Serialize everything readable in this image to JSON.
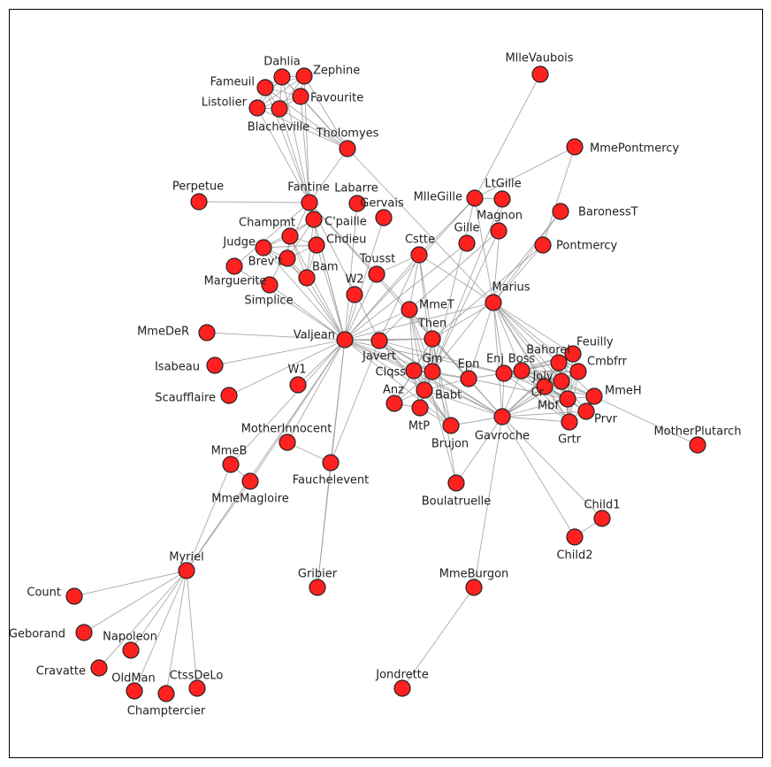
{
  "colors": {
    "node_fill": "#ff2020",
    "node_stroke": "#222222",
    "edge": "#9a9a9a",
    "frame": "#000000",
    "label": "#222222"
  },
  "nodes": [
    {
      "id": "MlleVaubois",
      "label": "MlleVaubois"
    },
    {
      "id": "Dahlia",
      "label": "Dahlia"
    },
    {
      "id": "Zephine",
      "label": "Zephine"
    },
    {
      "id": "Fameuil",
      "label": "Fameuil"
    },
    {
      "id": "Favourite",
      "label": "Favourite"
    },
    {
      "id": "Listolier",
      "label": "Listolier"
    },
    {
      "id": "Blacheville",
      "label": "Blacheville"
    },
    {
      "id": "Tholomyes",
      "label": "Tholomyes"
    },
    {
      "id": "MmePontmercy",
      "label": "MmePontmercy"
    },
    {
      "id": "Perpetue",
      "label": "Perpetue"
    },
    {
      "id": "Fantine",
      "label": "Fantine"
    },
    {
      "id": "Labarre",
      "label": "Labarre"
    },
    {
      "id": "Gervais",
      "label": "Gervais"
    },
    {
      "id": "MlleGille",
      "label": "MlleGille"
    },
    {
      "id": "LtGille",
      "label": "LtGille"
    },
    {
      "id": "BaronessT",
      "label": "BaronessT"
    },
    {
      "id": "Champmt",
      "label": "Champmt"
    },
    {
      "id": "Cpaille",
      "label": "C'paille"
    },
    {
      "id": "Magnon",
      "label": "Magnon"
    },
    {
      "id": "Gille",
      "label": "Gille"
    },
    {
      "id": "Judge",
      "label": "Judge"
    },
    {
      "id": "Chdieu",
      "label": "Chdieu"
    },
    {
      "id": "Cstte",
      "label": "Cstte"
    },
    {
      "id": "Pontmercy",
      "label": "Pontmercy"
    },
    {
      "id": "Brevet",
      "label": "Brev't"
    },
    {
      "id": "Tousst",
      "label": "Tousst"
    },
    {
      "id": "Bam",
      "label": "Bam"
    },
    {
      "id": "Marguerite",
      "label": "Marguerite"
    },
    {
      "id": "W2",
      "label": "W2"
    },
    {
      "id": "Simplice",
      "label": "Simplice"
    },
    {
      "id": "Marius",
      "label": "Marius"
    },
    {
      "id": "MmeT",
      "label": "MmeT"
    },
    {
      "id": "MmeDeR",
      "label": "MmeDeR"
    },
    {
      "id": "Valjean",
      "label": "Valjean"
    },
    {
      "id": "Then",
      "label": "Then"
    },
    {
      "id": "Javert",
      "label": "Javert"
    },
    {
      "id": "Feuilly",
      "label": "Feuilly"
    },
    {
      "id": "Bahorel",
      "label": "Bahorel"
    },
    {
      "id": "Isabeau",
      "label": "Isabeau"
    },
    {
      "id": "Gm",
      "label": "Gm"
    },
    {
      "id": "Cmbfrr",
      "label": "Cmbfrr"
    },
    {
      "id": "Enj",
      "label": "Enj"
    },
    {
      "id": "Boss",
      "label": "Boss"
    },
    {
      "id": "W1",
      "label": "W1"
    },
    {
      "id": "Clqss",
      "label": "Clqss"
    },
    {
      "id": "Epn",
      "label": "Epn"
    },
    {
      "id": "Joly",
      "label": "Joly"
    },
    {
      "id": "Cr",
      "label": "Cr"
    },
    {
      "id": "Scaufflaire",
      "label": "Scaufflaire"
    },
    {
      "id": "MmeH",
      "label": "MmeH"
    },
    {
      "id": "Anz",
      "label": "Anz"
    },
    {
      "id": "Babt",
      "label": "Babt"
    },
    {
      "id": "Mbf",
      "label": "Mbf"
    },
    {
      "id": "MtP",
      "label": "MtP"
    },
    {
      "id": "Prvr",
      "label": "Prvr"
    },
    {
      "id": "Grtr",
      "label": "Grtr"
    },
    {
      "id": "Gavroche",
      "label": "Gavroche"
    },
    {
      "id": "Brujon",
      "label": "Brujon"
    },
    {
      "id": "MotherInnocent",
      "label": "MotherInnocent"
    },
    {
      "id": "MotherPlutarch",
      "label": "MotherPlutarch"
    },
    {
      "id": "MmeB",
      "label": "MmeB"
    },
    {
      "id": "Fauchelevent",
      "label": "Fauchelevent"
    },
    {
      "id": "MmeMagloire",
      "label": "MmeMagloire"
    },
    {
      "id": "Boulatruelle",
      "label": "Boulatruelle"
    },
    {
      "id": "Child1",
      "label": "Child1"
    },
    {
      "id": "Child2",
      "label": "Child2"
    },
    {
      "id": "Myriel",
      "label": "Myriel"
    },
    {
      "id": "Gribier",
      "label": "Gribier"
    },
    {
      "id": "MmeBurgon",
      "label": "MmeBurgon"
    },
    {
      "id": "Count",
      "label": "Count"
    },
    {
      "id": "Geborand",
      "label": "Geborand"
    },
    {
      "id": "Napoleon",
      "label": "Napoleon"
    },
    {
      "id": "Cravatte",
      "label": "Cravatte"
    },
    {
      "id": "OldMan",
      "label": "OldMan"
    },
    {
      "id": "CtssDeLo",
      "label": "CtssDeLo"
    },
    {
      "id": "Champtercier",
      "label": "Champtercier"
    },
    {
      "id": "Jondrette",
      "label": "Jondrette"
    }
  ],
  "edges": [
    [
      "Dahlia",
      "Zephine"
    ],
    [
      "Dahlia",
      "Fameuil"
    ],
    [
      "Dahlia",
      "Favourite"
    ],
    [
      "Dahlia",
      "Listolier"
    ],
    [
      "Dahlia",
      "Blacheville"
    ],
    [
      "Dahlia",
      "Tholomyes"
    ],
    [
      "Dahlia",
      "Fantine"
    ],
    [
      "Zephine",
      "Fameuil"
    ],
    [
      "Zephine",
      "Favourite"
    ],
    [
      "Zephine",
      "Listolier"
    ],
    [
      "Zephine",
      "Blacheville"
    ],
    [
      "Zephine",
      "Tholomyes"
    ],
    [
      "Zephine",
      "Fantine"
    ],
    [
      "Fameuil",
      "Favourite"
    ],
    [
      "Fameuil",
      "Listolier"
    ],
    [
      "Fameuil",
      "Blacheville"
    ],
    [
      "Fameuil",
      "Tholomyes"
    ],
    [
      "Fameuil",
      "Fantine"
    ],
    [
      "Favourite",
      "Listolier"
    ],
    [
      "Favourite",
      "Blacheville"
    ],
    [
      "Favourite",
      "Tholomyes"
    ],
    [
      "Favourite",
      "Fantine"
    ],
    [
      "Listolier",
      "Blacheville"
    ],
    [
      "Listolier",
      "Tholomyes"
    ],
    [
      "Listolier",
      "Fantine"
    ],
    [
      "Blacheville",
      "Tholomyes"
    ],
    [
      "Blacheville",
      "Fantine"
    ],
    [
      "Tholomyes",
      "Fantine"
    ],
    [
      "Tholomyes",
      "Marius"
    ],
    [
      "Perpetue",
      "Fantine"
    ],
    [
      "Fantine",
      "Valjean"
    ],
    [
      "Fantine",
      "Javert"
    ],
    [
      "Fantine",
      "MmeT"
    ],
    [
      "Fantine",
      "Then"
    ],
    [
      "Fantine",
      "Marguerite"
    ],
    [
      "Fantine",
      "Simplice"
    ],
    [
      "Labarre",
      "Valjean"
    ],
    [
      "Gervais",
      "Valjean"
    ],
    [
      "MlleVaubois",
      "MlleGille"
    ],
    [
      "MmePontmercy",
      "Pontmercy"
    ],
    [
      "MmePontmercy",
      "MlleGille"
    ],
    [
      "LtGille",
      "MlleGille"
    ],
    [
      "LtGille",
      "Gm"
    ],
    [
      "LtGille",
      "Marius"
    ],
    [
      "MlleGille",
      "Gm"
    ],
    [
      "MlleGille",
      "Marius"
    ],
    [
      "MlleGille",
      "Valjean"
    ],
    [
      "MlleGille",
      "Cstte"
    ],
    [
      "BaronessT",
      "Marius"
    ],
    [
      "BaronessT",
      "Gm"
    ],
    [
      "Pontmercy",
      "Marius"
    ],
    [
      "Pontmercy",
      "Then"
    ],
    [
      "Magnon",
      "Gm"
    ],
    [
      "Magnon",
      "MmeT"
    ],
    [
      "Gille",
      "Valjean"
    ],
    [
      "Champmt",
      "Cpaille"
    ],
    [
      "Champmt",
      "Judge"
    ],
    [
      "Champmt",
      "Chdieu"
    ],
    [
      "Champmt",
      "Brevet"
    ],
    [
      "Champmt",
      "Bam"
    ],
    [
      "Champmt",
      "Valjean"
    ],
    [
      "Cpaille",
      "Judge"
    ],
    [
      "Cpaille",
      "Chdieu"
    ],
    [
      "Cpaille",
      "Brevet"
    ],
    [
      "Cpaille",
      "Bam"
    ],
    [
      "Cpaille",
      "Valjean"
    ],
    [
      "Judge",
      "Chdieu"
    ],
    [
      "Judge",
      "Brevet"
    ],
    [
      "Judge",
      "Bam"
    ],
    [
      "Judge",
      "Valjean"
    ],
    [
      "Chdieu",
      "Brevet"
    ],
    [
      "Chdieu",
      "Bam"
    ],
    [
      "Chdieu",
      "Valjean"
    ],
    [
      "Brevet",
      "Bam"
    ],
    [
      "Brevet",
      "Valjean"
    ],
    [
      "Bam",
      "Valjean"
    ],
    [
      "Cstte",
      "Valjean"
    ],
    [
      "Cstte",
      "Marius"
    ],
    [
      "Cstte",
      "Javert"
    ],
    [
      "Cstte",
      "Then"
    ],
    [
      "Cstte",
      "Gm"
    ],
    [
      "Cstte",
      "MmeT"
    ],
    [
      "Cstte",
      "Tousst"
    ],
    [
      "Tousst",
      "Valjean"
    ],
    [
      "W2",
      "Valjean"
    ],
    [
      "Simplice",
      "Valjean"
    ],
    [
      "Marguerite",
      "Valjean"
    ],
    [
      "MmeDeR",
      "Valjean"
    ],
    [
      "Isabeau",
      "Valjean"
    ],
    [
      "Scaufflaire",
      "Valjean"
    ],
    [
      "W1",
      "Valjean"
    ],
    [
      "Valjean",
      "Javert"
    ],
    [
      "Valjean",
      "MmeT"
    ],
    [
      "Valjean",
      "Then"
    ],
    [
      "Valjean",
      "Marius"
    ],
    [
      "Valjean",
      "Gavroche"
    ],
    [
      "Valjean",
      "Myriel"
    ],
    [
      "Valjean",
      "MmeMagloire"
    ],
    [
      "Valjean",
      "MmeB"
    ],
    [
      "Valjean",
      "Fauchelevent"
    ],
    [
      "Valjean",
      "MotherInnocent"
    ],
    [
      "Valjean",
      "Gribier"
    ],
    [
      "Valjean",
      "Gm"
    ],
    [
      "Valjean",
      "Babt"
    ],
    [
      "Valjean",
      "Clqss"
    ],
    [
      "Valjean",
      "Brujon"
    ],
    [
      "Valjean",
      "Enj"
    ],
    [
      "Javert",
      "Then"
    ],
    [
      "Javert",
      "MmeT"
    ],
    [
      "Javert",
      "Gavroche"
    ],
    [
      "Javert",
      "Enj"
    ],
    [
      "Javert",
      "Gm"
    ],
    [
      "Javert",
      "Babt"
    ],
    [
      "Javert",
      "Clqss"
    ],
    [
      "Javert",
      "Brujon"
    ],
    [
      "Javert",
      "Fauchelevent"
    ],
    [
      "MmeT",
      "Then"
    ],
    [
      "MmeT",
      "Epn"
    ],
    [
      "MmeT",
      "Babt"
    ],
    [
      "MmeT",
      "Clqss"
    ],
    [
      "MmeT",
      "Gm"
    ],
    [
      "MmeT",
      "Boulatruelle"
    ],
    [
      "Then",
      "Epn"
    ],
    [
      "Then",
      "Gm"
    ],
    [
      "Then",
      "Babt"
    ],
    [
      "Then",
      "Clqss"
    ],
    [
      "Then",
      "Anz"
    ],
    [
      "Then",
      "MtP"
    ],
    [
      "Then",
      "Brujon"
    ],
    [
      "Then",
      "Gavroche"
    ],
    [
      "Then",
      "Marius"
    ],
    [
      "Then",
      "Boulatruelle"
    ],
    [
      "Gm",
      "Babt"
    ],
    [
      "Gm",
      "Clqss"
    ],
    [
      "Gm",
      "Anz"
    ],
    [
      "Gm",
      "MtP"
    ],
    [
      "Gm",
      "Brujon"
    ],
    [
      "Gm",
      "Epn"
    ],
    [
      "Babt",
      "Clqss"
    ],
    [
      "Babt",
      "Anz"
    ],
    [
      "Babt",
      "MtP"
    ],
    [
      "Babt",
      "Brujon"
    ],
    [
      "Babt",
      "Epn"
    ],
    [
      "Clqss",
      "Anz"
    ],
    [
      "Clqss",
      "MtP"
    ],
    [
      "Clqss",
      "Brujon"
    ],
    [
      "Clqss",
      "Epn"
    ],
    [
      "Anz",
      "MtP"
    ],
    [
      "MtP",
      "Brujon"
    ],
    [
      "Brujon",
      "Gavroche"
    ],
    [
      "Marius",
      "Epn"
    ],
    [
      "Marius",
      "Enj"
    ],
    [
      "Marius",
      "Cmbfrr"
    ],
    [
      "Marius",
      "Cr"
    ],
    [
      "Marius",
      "Bahorel"
    ],
    [
      "Marius",
      "Feuilly"
    ],
    [
      "Marius",
      "Joly"
    ],
    [
      "Marius",
      "Grtr"
    ],
    [
      "Marius",
      "Boss"
    ],
    [
      "Marius",
      "Mbf"
    ],
    [
      "Marius",
      "Gavroche"
    ],
    [
      "Epn",
      "Gavroche"
    ],
    [
      "Epn",
      "Enj"
    ],
    [
      "Epn",
      "Mbf"
    ],
    [
      "Enj",
      "Boss"
    ],
    [
      "Enj",
      "Cmbfrr"
    ],
    [
      "Enj",
      "Cr"
    ],
    [
      "Enj",
      "Bahorel"
    ],
    [
      "Enj",
      "Feuilly"
    ],
    [
      "Enj",
      "Joly"
    ],
    [
      "Enj",
      "Grtr"
    ],
    [
      "Enj",
      "Mbf"
    ],
    [
      "Enj",
      "Gavroche"
    ],
    [
      "Boss",
      "Cmbfrr"
    ],
    [
      "Boss",
      "Cr"
    ],
    [
      "Boss",
      "Bahorel"
    ],
    [
      "Boss",
      "Feuilly"
    ],
    [
      "Boss",
      "Joly"
    ],
    [
      "Boss",
      "Grtr"
    ],
    [
      "Boss",
      "Mbf"
    ],
    [
      "Boss",
      "Gavroche"
    ],
    [
      "Boss",
      "MmeH"
    ],
    [
      "Boss",
      "Prvr"
    ],
    [
      "Bahorel",
      "Feuilly"
    ],
    [
      "Bahorel",
      "Cmbfrr"
    ],
    [
      "Bahorel",
      "Cr"
    ],
    [
      "Bahorel",
      "Joly"
    ],
    [
      "Bahorel",
      "Grtr"
    ],
    [
      "Bahorel",
      "Mbf"
    ],
    [
      "Bahorel",
      "MmeH"
    ],
    [
      "Bahorel",
      "Gavroche"
    ],
    [
      "Feuilly",
      "Cmbfrr"
    ],
    [
      "Feuilly",
      "Cr"
    ],
    [
      "Feuilly",
      "Joly"
    ],
    [
      "Feuilly",
      "Grtr"
    ],
    [
      "Feuilly",
      "Mbf"
    ],
    [
      "Feuilly",
      "Gavroche"
    ],
    [
      "Cmbfrr",
      "Cr"
    ],
    [
      "Cmbfrr",
      "Joly"
    ],
    [
      "Cmbfrr",
      "Grtr"
    ],
    [
      "Cmbfrr",
      "Mbf"
    ],
    [
      "Cmbfrr",
      "Gavroche"
    ],
    [
      "Cr",
      "Joly"
    ],
    [
      "Cr",
      "Grtr"
    ],
    [
      "Cr",
      "Mbf"
    ],
    [
      "Cr",
      "Gavroche"
    ],
    [
      "Cr",
      "MotherPlutarch"
    ],
    [
      "Cr",
      "MmeH"
    ],
    [
      "Cr",
      "Prvr"
    ],
    [
      "Joly",
      "Grtr"
    ],
    [
      "Joly",
      "Mbf"
    ],
    [
      "Joly",
      "Gavroche"
    ],
    [
      "Joly",
      "MmeH"
    ],
    [
      "Joly",
      "Prvr"
    ],
    [
      "Mbf",
      "Grtr"
    ],
    [
      "Mbf",
      "Gavroche"
    ],
    [
      "Mbf",
      "MmeH"
    ],
    [
      "Mbf",
      "Prvr"
    ],
    [
      "Grtr",
      "Gavroche"
    ],
    [
      "Prvr",
      "Gavroche"
    ],
    [
      "MmeH",
      "Prvr"
    ],
    [
      "MmeH",
      "Grtr"
    ],
    [
      "Gavroche",
      "Child1"
    ],
    [
      "Gavroche",
      "Child2"
    ],
    [
      "Gavroche",
      "MmeBurgon"
    ],
    [
      "Gavroche",
      "Then"
    ],
    [
      "Gavroche",
      "Babt"
    ],
    [
      "Gavroche",
      "Gm"
    ],
    [
      "Gavroche",
      "Clqss"
    ],
    [
      "Child1",
      "Child2"
    ],
    [
      "MmeBurgon",
      "Jondrette"
    ],
    [
      "Boulatruelle",
      "Gavroche"
    ],
    [
      "Fauchelevent",
      "MotherInnocent"
    ],
    [
      "Fauchelevent",
      "Gribier"
    ],
    [
      "Myriel",
      "MmeMagloire"
    ],
    [
      "Myriel",
      "MmeB"
    ],
    [
      "MmeB",
      "MmeMagloire"
    ],
    [
      "Myriel",
      "Count"
    ],
    [
      "Myriel",
      "Geborand"
    ],
    [
      "Myriel",
      "Napoleon"
    ],
    [
      "Myriel",
      "Cravatte"
    ],
    [
      "Myriel",
      "OldMan"
    ],
    [
      "Myriel",
      "CtssDeLo"
    ],
    [
      "Myriel",
      "Champtercier"
    ]
  ]
}
